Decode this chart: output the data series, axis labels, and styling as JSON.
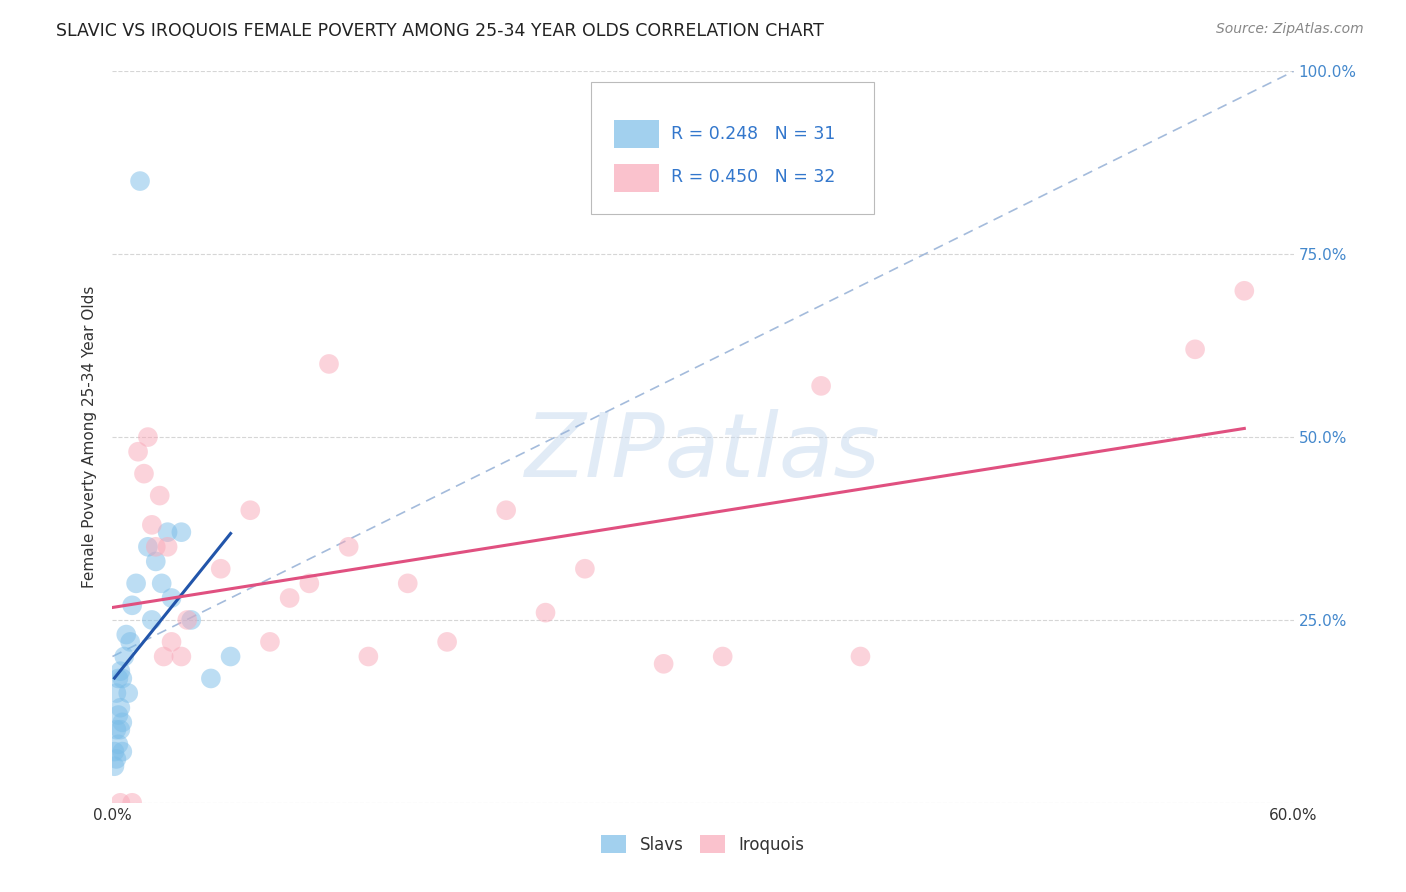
{
  "title": "SLAVIC VS IROQUOIS FEMALE POVERTY AMONG 25-34 YEAR OLDS CORRELATION CHART",
  "source": "Source: ZipAtlas.com",
  "ylabel": "Female Poverty Among 25-34 Year Olds",
  "xlim": [
    0.0,
    0.6
  ],
  "ylim": [
    0.0,
    1.0
  ],
  "xticks": [
    0.0,
    0.12,
    0.24,
    0.36,
    0.48,
    0.6
  ],
  "xtick_labels": [
    "0.0%",
    "",
    "",
    "",
    "",
    "60.0%"
  ],
  "ytick_positions": [
    0.0,
    0.25,
    0.5,
    0.75,
    1.0
  ],
  "ytick_labels_right": [
    "",
    "25.0%",
    "50.0%",
    "75.0%",
    "100.0%"
  ],
  "grid_color": "#cccccc",
  "background_color": "#ffffff",
  "slavs_color": "#7bbde8",
  "iroquois_color": "#f9a8b8",
  "slavs_R": 0.248,
  "slavs_N": 31,
  "iroquois_R": 0.45,
  "iroquois_N": 32,
  "slavs_x": [
    0.001,
    0.001,
    0.002,
    0.002,
    0.002,
    0.003,
    0.003,
    0.003,
    0.004,
    0.004,
    0.004,
    0.005,
    0.005,
    0.005,
    0.006,
    0.007,
    0.008,
    0.009,
    0.01,
    0.012,
    0.014,
    0.018,
    0.02,
    0.022,
    0.025,
    0.028,
    0.03,
    0.035,
    0.04,
    0.05,
    0.06
  ],
  "slavs_y": [
    0.05,
    0.07,
    0.06,
    0.1,
    0.15,
    0.08,
    0.12,
    0.17,
    0.1,
    0.13,
    0.18,
    0.07,
    0.11,
    0.17,
    0.2,
    0.23,
    0.15,
    0.22,
    0.27,
    0.3,
    0.85,
    0.35,
    0.25,
    0.33,
    0.3,
    0.37,
    0.28,
    0.37,
    0.25,
    0.17,
    0.2
  ],
  "iroquois_x": [
    0.004,
    0.01,
    0.013,
    0.016,
    0.018,
    0.02,
    0.022,
    0.024,
    0.026,
    0.028,
    0.03,
    0.035,
    0.038,
    0.055,
    0.07,
    0.08,
    0.09,
    0.1,
    0.11,
    0.12,
    0.13,
    0.15,
    0.17,
    0.2,
    0.22,
    0.24,
    0.28,
    0.31,
    0.36,
    0.38,
    0.55,
    0.575
  ],
  "iroquois_y": [
    0.0,
    0.0,
    0.48,
    0.45,
    0.5,
    0.38,
    0.35,
    0.42,
    0.2,
    0.35,
    0.22,
    0.2,
    0.25,
    0.32,
    0.4,
    0.22,
    0.28,
    0.3,
    0.6,
    0.35,
    0.2,
    0.3,
    0.22,
    0.4,
    0.26,
    0.32,
    0.19,
    0.2,
    0.57,
    0.2,
    0.62,
    0.7
  ],
  "slavs_line_color": "#2255aa",
  "iroquois_line_color": "#e05080",
  "diagonal_color": "#9ab4d8",
  "watermark_text": "ZIPatlas",
  "legend_color": "#3377cc"
}
